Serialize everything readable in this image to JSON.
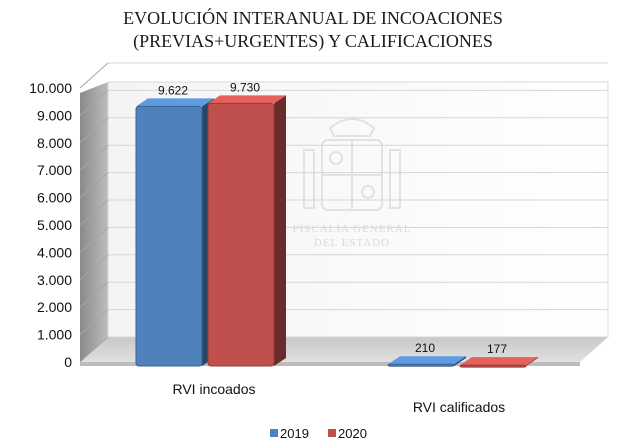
{
  "chart_data": {
    "type": "bar",
    "title_lines": [
      "EVOLUCIÓN INTERANUAL DE INCOACIONES",
      "(PREVIAS+URGENTES) Y CALIFICACIONES"
    ],
    "categories": [
      "RVI incoados",
      "RVI calificados"
    ],
    "series": [
      {
        "name": "2019",
        "values": [
          9622,
          210
        ],
        "labels": [
          "9.622",
          "210"
        ],
        "color": "#4f81bd"
      },
      {
        "name": "2020",
        "values": [
          9730,
          177
        ],
        "labels": [
          "9.730",
          "177"
        ],
        "color": "#c0504d"
      }
    ],
    "ylim": [
      0,
      10000
    ],
    "y_ticks": [
      {
        "value": 10000,
        "label": "10.000"
      },
      {
        "value": 9000,
        "label": "9.000"
      },
      {
        "value": 8000,
        "label": "8.000"
      },
      {
        "value": 7000,
        "label": "7.000"
      },
      {
        "value": 6000,
        "label": "6.000"
      },
      {
        "value": 5000,
        "label": "5.000"
      },
      {
        "value": 4000,
        "label": "4.000"
      },
      {
        "value": 3000,
        "label": "3.000"
      },
      {
        "value": 2000,
        "label": "2.000"
      },
      {
        "value": 1000,
        "label": "1.000"
      },
      {
        "value": 0,
        "label": "0"
      }
    ],
    "grid": true,
    "legend_position": "bottom",
    "style": "3d-column"
  },
  "watermark": {
    "lines": [
      "FISCALÍA GENERAL",
      "DEL ESTADO"
    ]
  }
}
